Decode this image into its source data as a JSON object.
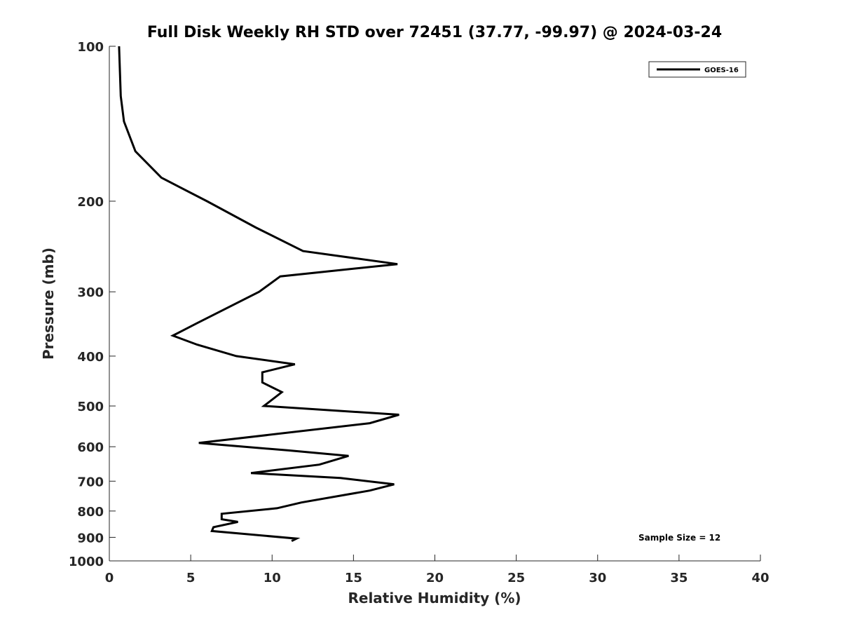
{
  "chart_data": {
    "type": "line",
    "title": "Full Disk Weekly RH STD over 72451 (37.77, -99.97) @ 2024-03-24",
    "xlabel": "Relative Humidity (%)",
    "ylabel": "Pressure (mb)",
    "xlim": [
      0,
      40
    ],
    "ylim": [
      100,
      1000
    ],
    "yscale": "log",
    "yreversed": true,
    "grid": false,
    "legend_position": "top-right",
    "xticks": [
      0,
      5,
      10,
      15,
      20,
      25,
      30,
      35,
      40
    ],
    "xtick_labels": [
      "0",
      "5",
      "10",
      "15",
      "20",
      "25",
      "30",
      "35",
      "40"
    ],
    "yticks": [
      100,
      200,
      300,
      400,
      500,
      600,
      700,
      800,
      900,
      1000
    ],
    "ytick_labels": [
      "100",
      "200",
      "300",
      "400",
      "500",
      "600",
      "700",
      "800",
      "900",
      "1000"
    ],
    "annotation": "Sample Size = 12",
    "series": [
      {
        "name": "GOES-16",
        "color": "#000000",
        "points": [
          {
            "x": 0.6,
            "y": 100
          },
          {
            "x": 0.7,
            "y": 125
          },
          {
            "x": 0.9,
            "y": 140
          },
          {
            "x": 1.6,
            "y": 160
          },
          {
            "x": 3.2,
            "y": 180
          },
          {
            "x": 6.0,
            "y": 200
          },
          {
            "x": 9.0,
            "y": 225
          },
          {
            "x": 11.9,
            "y": 250
          },
          {
            "x": 17.7,
            "y": 265
          },
          {
            "x": 10.5,
            "y": 280
          },
          {
            "x": 9.2,
            "y": 300
          },
          {
            "x": 5.4,
            "y": 345
          },
          {
            "x": 3.9,
            "y": 365
          },
          {
            "x": 5.4,
            "y": 380
          },
          {
            "x": 7.8,
            "y": 400
          },
          {
            "x": 11.4,
            "y": 415
          },
          {
            "x": 9.4,
            "y": 430
          },
          {
            "x": 9.4,
            "y": 450
          },
          {
            "x": 10.6,
            "y": 470
          },
          {
            "x": 9.5,
            "y": 500
          },
          {
            "x": 17.8,
            "y": 520
          },
          {
            "x": 16.0,
            "y": 540
          },
          {
            "x": 5.5,
            "y": 590
          },
          {
            "x": 11.0,
            "y": 610
          },
          {
            "x": 14.7,
            "y": 625
          },
          {
            "x": 12.9,
            "y": 650
          },
          {
            "x": 8.7,
            "y": 675
          },
          {
            "x": 14.2,
            "y": 690
          },
          {
            "x": 17.5,
            "y": 710
          },
          {
            "x": 16.0,
            "y": 730
          },
          {
            "x": 11.8,
            "y": 770
          },
          {
            "x": 10.3,
            "y": 790
          },
          {
            "x": 6.9,
            "y": 810
          },
          {
            "x": 6.9,
            "y": 830
          },
          {
            "x": 7.9,
            "y": 840
          },
          {
            "x": 6.4,
            "y": 860
          },
          {
            "x": 6.3,
            "y": 875
          },
          {
            "x": 11.5,
            "y": 905
          },
          {
            "x": 11.2,
            "y": 915
          }
        ]
      }
    ]
  }
}
